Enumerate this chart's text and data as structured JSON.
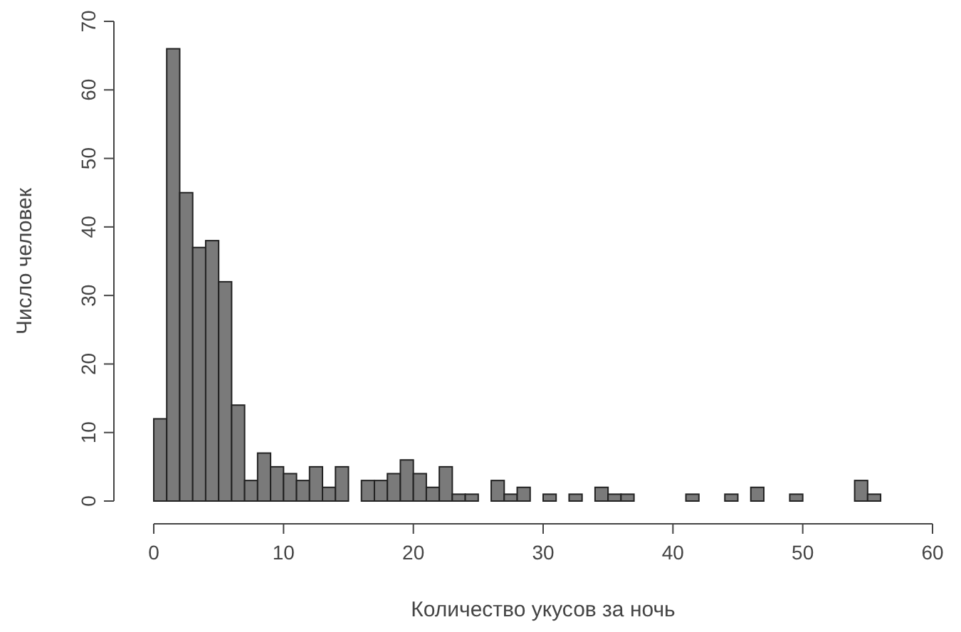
{
  "chart_data": {
    "type": "histogram",
    "xlabel": "Количество укусов за ночь",
    "ylabel": "Число человек",
    "bins": [
      0,
      1,
      2,
      3,
      4,
      5,
      6,
      7,
      8,
      9,
      10,
      11,
      12,
      13,
      14,
      15,
      16,
      17,
      18,
      19,
      20,
      21,
      22,
      23,
      24,
      25,
      26,
      27,
      28,
      29,
      30,
      31,
      32,
      33,
      34,
      35,
      36,
      37,
      38,
      39,
      40,
      41,
      42,
      43,
      44,
      45,
      46,
      47,
      48,
      49,
      50,
      51,
      52,
      53,
      54,
      55,
      56
    ],
    "values": [
      12,
      66,
      45,
      37,
      38,
      32,
      14,
      3,
      7,
      5,
      4,
      3,
      5,
      2,
      5,
      0,
      3,
      3,
      4,
      6,
      4,
      2,
      5,
      1,
      1,
      0,
      3,
      1,
      2,
      0,
      1,
      0,
      1,
      0,
      2,
      1,
      1,
      0,
      0,
      0,
      0,
      1,
      0,
      0,
      1,
      0,
      2,
      0,
      0,
      1,
      0,
      0,
      0,
      0,
      3,
      1
    ],
    "color": "#7a7a7a",
    "xlim": [
      0,
      60
    ],
    "xticks": [
      0,
      10,
      20,
      30,
      40,
      50,
      60
    ],
    "ylim": [
      0,
      70
    ],
    "yticks": [
      0,
      10,
      20,
      30,
      40,
      50,
      60,
      70
    ],
    "grid": false
  }
}
